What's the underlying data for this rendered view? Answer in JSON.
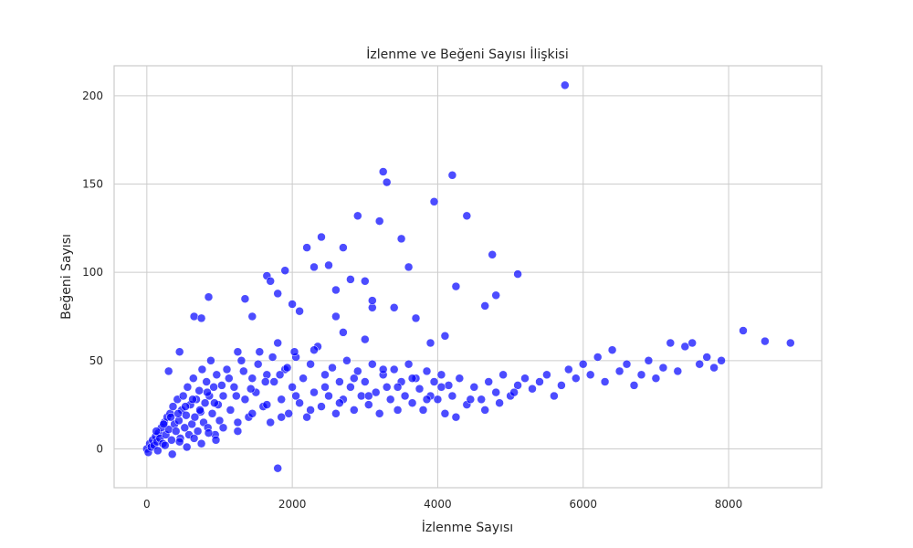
{
  "chart_data": {
    "type": "scatter",
    "title": "İzlenme ve Beğeni Sayısı İlişkisi",
    "xlabel": "İzlenme Sayısı",
    "ylabel": "Beğeni Sayısı",
    "xlim": [
      -450,
      9280
    ],
    "ylim": [
      -22,
      217
    ],
    "xticks": [
      0,
      2000,
      4000,
      6000,
      8000
    ],
    "yticks": [
      0,
      50,
      100,
      150,
      200
    ],
    "grid": true,
    "legend": "none",
    "point_color": "#0000ff",
    "point_opacity": 0.7,
    "points": [
      [
        0,
        0
      ],
      [
        20,
        -2
      ],
      [
        40,
        3
      ],
      [
        60,
        1
      ],
      [
        80,
        5
      ],
      [
        100,
        2
      ],
      [
        120,
        7
      ],
      [
        140,
        4
      ],
      [
        160,
        9
      ],
      [
        180,
        6
      ],
      [
        200,
        12
      ],
      [
        220,
        3
      ],
      [
        240,
        15
      ],
      [
        260,
        8
      ],
      [
        280,
        18
      ],
      [
        300,
        11
      ],
      [
        320,
        20
      ],
      [
        340,
        5
      ],
      [
        360,
        24
      ],
      [
        380,
        14
      ],
      [
        400,
        10
      ],
      [
        420,
        28
      ],
      [
        440,
        16
      ],
      [
        460,
        6
      ],
      [
        480,
        22
      ],
      [
        500,
        30
      ],
      [
        520,
        12
      ],
      [
        540,
        19
      ],
      [
        560,
        35
      ],
      [
        580,
        8
      ],
      [
        600,
        25
      ],
      [
        620,
        14
      ],
      [
        640,
        40
      ],
      [
        660,
        18
      ],
      [
        680,
        28
      ],
      [
        700,
        10
      ],
      [
        720,
        33
      ],
      [
        740,
        21
      ],
      [
        760,
        45
      ],
      [
        780,
        15
      ],
      [
        800,
        26
      ],
      [
        820,
        38
      ],
      [
        840,
        12
      ],
      [
        860,
        30
      ],
      [
        880,
        50
      ],
      [
        900,
        20
      ],
      [
        920,
        35
      ],
      [
        940,
        8
      ],
      [
        960,
        42
      ],
      [
        980,
        25
      ],
      [
        1000,
        16
      ],
      [
        1050,
        30
      ],
      [
        1100,
        45
      ],
      [
        1150,
        22
      ],
      [
        1200,
        35
      ],
      [
        1250,
        10
      ],
      [
        1300,
        50
      ],
      [
        1350,
        28
      ],
      [
        1400,
        18
      ],
      [
        1450,
        40
      ],
      [
        1500,
        32
      ],
      [
        1550,
        55
      ],
      [
        1600,
        24
      ],
      [
        1650,
        42
      ],
      [
        1700,
        15
      ],
      [
        1750,
        38
      ],
      [
        1800,
        60
      ],
      [
        1850,
        28
      ],
      [
        1900,
        45
      ],
      [
        1950,
        20
      ],
      [
        2000,
        35
      ],
      [
        2050,
        52
      ],
      [
        2100,
        26
      ],
      [
        2150,
        40
      ],
      [
        2200,
        18
      ],
      [
        2250,
        48
      ],
      [
        2300,
        32
      ],
      [
        2350,
        58
      ],
      [
        2400,
        24
      ],
      [
        2450,
        42
      ],
      [
        2500,
        30
      ],
      [
        2550,
        46
      ],
      [
        2600,
        20
      ],
      [
        2650,
        38
      ],
      [
        2700,
        28
      ],
      [
        2750,
        50
      ],
      [
        2800,
        35
      ],
      [
        2850,
        22
      ],
      [
        2900,
        44
      ],
      [
        2950,
        30
      ],
      [
        3000,
        38
      ],
      [
        3050,
        25
      ],
      [
        3100,
        48
      ],
      [
        3150,
        32
      ],
      [
        3200,
        20
      ],
      [
        3250,
        42
      ],
      [
        3300,
        35
      ],
      [
        3350,
        28
      ],
      [
        3400,
        45
      ],
      [
        3450,
        22
      ],
      [
        3500,
        38
      ],
      [
        3550,
        30
      ],
      [
        3600,
        48
      ],
      [
        3650,
        26
      ],
      [
        3700,
        40
      ],
      [
        3750,
        34
      ],
      [
        3800,
        22
      ],
      [
        3850,
        44
      ],
      [
        3900,
        30
      ],
      [
        3950,
        38
      ],
      [
        4000,
        28
      ],
      [
        4050,
        42
      ],
      [
        4100,
        20
      ],
      [
        4150,
        36
      ],
      [
        4200,
        30
      ],
      [
        4300,
        40
      ],
      [
        4400,
        25
      ],
      [
        4500,
        35
      ],
      [
        4600,
        28
      ],
      [
        4700,
        38
      ],
      [
        4800,
        32
      ],
      [
        4900,
        42
      ],
      [
        5000,
        30
      ],
      [
        5100,
        36
      ],
      [
        5200,
        40
      ],
      [
        5300,
        34
      ],
      [
        5400,
        38
      ],
      [
        5500,
        42
      ],
      [
        5600,
        30
      ],
      [
        5700,
        36
      ],
      [
        5800,
        45
      ],
      [
        5900,
        40
      ],
      [
        6000,
        48
      ],
      [
        6100,
        42
      ],
      [
        6200,
        52
      ],
      [
        6300,
        38
      ],
      [
        6400,
        56
      ],
      [
        6500,
        44
      ],
      [
        6600,
        48
      ],
      [
        6700,
        36
      ],
      [
        6800,
        42
      ],
      [
        6900,
        50
      ],
      [
        7000,
        40
      ],
      [
        7100,
        46
      ],
      [
        7200,
        60
      ],
      [
        7300,
        44
      ],
      [
        7400,
        58
      ],
      [
        7500,
        60
      ],
      [
        7600,
        48
      ],
      [
        7700,
        52
      ],
      [
        7800,
        46
      ],
      [
        7900,
        50
      ],
      [
        8200,
        67
      ],
      [
        8500,
        61
      ],
      [
        8850,
        60
      ],
      [
        150,
        -1
      ],
      [
        250,
        2
      ],
      [
        350,
        -3
      ],
      [
        450,
        4
      ],
      [
        550,
        1
      ],
      [
        650,
        6
      ],
      [
        750,
        3
      ],
      [
        850,
        9
      ],
      [
        950,
        5
      ],
      [
        1050,
        12
      ],
      [
        130,
        10
      ],
      [
        230,
        14
      ],
      [
        330,
        18
      ],
      [
        430,
        20
      ],
      [
        530,
        24
      ],
      [
        630,
        28
      ],
      [
        730,
        22
      ],
      [
        830,
        32
      ],
      [
        930,
        26
      ],
      [
        1030,
        36
      ],
      [
        1130,
        40
      ],
      [
        1230,
        30
      ],
      [
        1330,
        44
      ],
      [
        1430,
        34
      ],
      [
        1530,
        48
      ],
      [
        1630,
        38
      ],
      [
        1730,
        52
      ],
      [
        1830,
        42
      ],
      [
        1930,
        46
      ],
      [
        2030,
        55
      ],
      [
        1250,
        15
      ],
      [
        1450,
        20
      ],
      [
        1650,
        25
      ],
      [
        1850,
        18
      ],
      [
        2050,
        30
      ],
      [
        2250,
        22
      ],
      [
        2450,
        35
      ],
      [
        2650,
        26
      ],
      [
        2850,
        40
      ],
      [
        3050,
        30
      ],
      [
        3250,
        45
      ],
      [
        3450,
        35
      ],
      [
        3650,
        40
      ],
      [
        3850,
        28
      ],
      [
        4050,
        35
      ],
      [
        4250,
        18
      ],
      [
        4450,
        28
      ],
      [
        4650,
        22
      ],
      [
        4850,
        26
      ],
      [
        5050,
        32
      ],
      [
        300,
        44
      ],
      [
        450,
        55
      ],
      [
        650,
        75
      ],
      [
        750,
        74
      ],
      [
        850,
        86
      ],
      [
        1250,
        55
      ],
      [
        1350,
        85
      ],
      [
        1450,
        75
      ],
      [
        1650,
        98
      ],
      [
        1700,
        95
      ],
      [
        1800,
        88
      ],
      [
        1900,
        101
      ],
      [
        2000,
        82
      ],
      [
        2100,
        78
      ],
      [
        2200,
        114
      ],
      [
        2300,
        103
      ],
      [
        2400,
        120
      ],
      [
        2500,
        104
      ],
      [
        2600,
        90
      ],
      [
        2700,
        114
      ],
      [
        2800,
        96
      ],
      [
        2900,
        132
      ],
      [
        3000,
        95
      ],
      [
        3100,
        80
      ],
      [
        3200,
        129
      ],
      [
        3250,
        157
      ],
      [
        3300,
        151
      ],
      [
        3500,
        119
      ],
      [
        3600,
        103
      ],
      [
        3950,
        140
      ],
      [
        4200,
        155
      ],
      [
        4250,
        92
      ],
      [
        4400,
        132
      ],
      [
        4650,
        81
      ],
      [
        4750,
        110
      ],
      [
        4800,
        87
      ],
      [
        5100,
        99
      ],
      [
        5750,
        206
      ],
      [
        1800,
        -11
      ],
      [
        2300,
        56
      ],
      [
        2600,
        75
      ],
      [
        2700,
        66
      ],
      [
        3000,
        62
      ],
      [
        3100,
        84
      ],
      [
        3400,
        80
      ],
      [
        3700,
        74
      ],
      [
        3900,
        60
      ],
      [
        4100,
        64
      ]
    ]
  }
}
